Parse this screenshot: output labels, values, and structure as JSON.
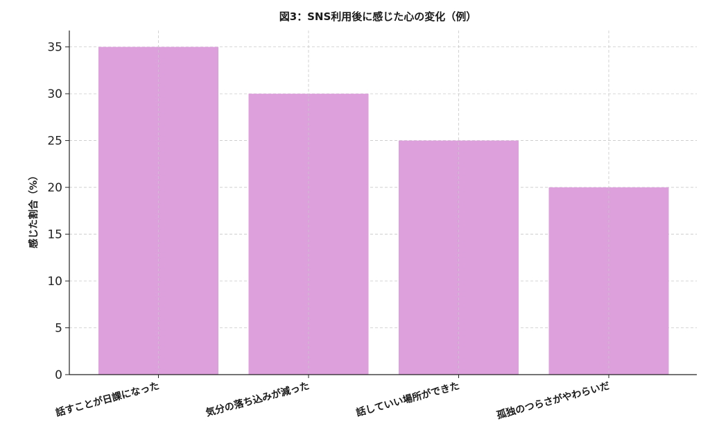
{
  "chart_data": {
    "type": "bar",
    "title": "図3：SNS利用後に感じた心の変化（例）",
    "xlabel": "",
    "ylabel": "感じた割合（%）",
    "categories": [
      "話すことが日課になった",
      "気分の落ち込みが減った",
      "話していい場所ができた",
      "孤独のつらさがやわらいだ"
    ],
    "values": [
      35,
      30,
      25,
      20
    ],
    "ylim": [
      0,
      36.75
    ],
    "yticks": [
      0,
      5,
      10,
      15,
      20,
      25,
      30,
      35
    ],
    "grid": true,
    "bar_color": "#dda0dd"
  }
}
